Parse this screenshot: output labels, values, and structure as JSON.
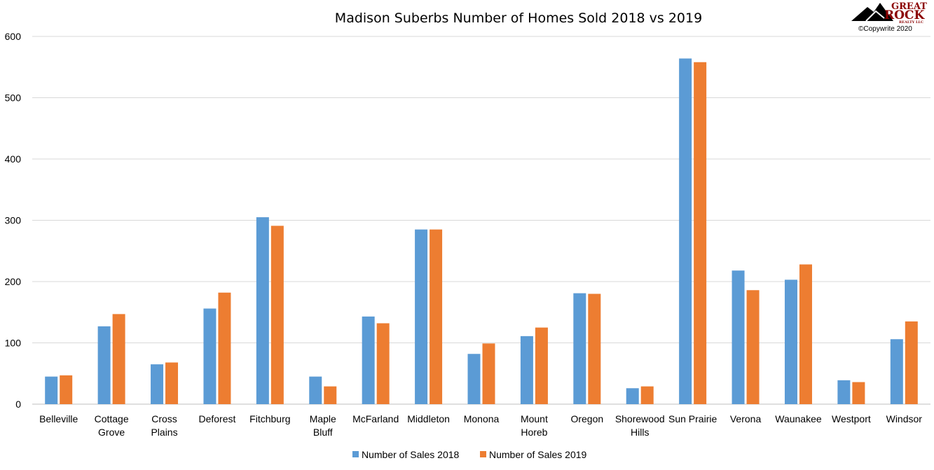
{
  "chart_data": {
    "type": "bar",
    "title": "Madison Suberbs Number of Homes Sold 2018 vs 2019",
    "xlabel": "",
    "ylabel": "",
    "ylim": [
      0,
      600
    ],
    "yticks": [
      0,
      100,
      200,
      300,
      400,
      500,
      600
    ],
    "grid": true,
    "legend_position": "bottom",
    "categories": [
      "Belleville",
      "Cottage Grove",
      "Cross Plains",
      "Deforest",
      "Fitchburg",
      "Maple Bluff",
      "McFarland",
      "Middleton",
      "Monona",
      "Mount Horeb",
      "Oregon",
      "Shorewood Hills",
      "Sun Prairie",
      "Verona",
      "Waunakee",
      "Westport",
      "Windsor"
    ],
    "category_lines": [
      [
        "Belleville"
      ],
      [
        "Cottage",
        "Grove"
      ],
      [
        "Cross",
        "Plains"
      ],
      [
        "Deforest"
      ],
      [
        "Fitchburg"
      ],
      [
        "Maple",
        "Bluff"
      ],
      [
        "McFarland"
      ],
      [
        "Middleton"
      ],
      [
        "Monona"
      ],
      [
        "Mount",
        "Horeb"
      ],
      [
        "Oregon"
      ],
      [
        "Shorewood",
        "Hills"
      ],
      [
        "Sun Prairie"
      ],
      [
        "Verona"
      ],
      [
        "Waunakee"
      ],
      [
        "Westport"
      ],
      [
        "Windsor"
      ]
    ],
    "series": [
      {
        "name": "Number of Sales 2018",
        "color": "#5b9bd5",
        "values": [
          45,
          127,
          65,
          156,
          305,
          45,
          143,
          285,
          82,
          111,
          181,
          26,
          564,
          218,
          203,
          39,
          106
        ]
      },
      {
        "name": "Number of Sales 2019",
        "color": "#ed7d31",
        "values": [
          47,
          147,
          68,
          182,
          291,
          29,
          132,
          285,
          99,
          125,
          180,
          29,
          558,
          186,
          228,
          36,
          135
        ]
      }
    ]
  },
  "logo": {
    "line1": "GREAT",
    "line2": "ROCK",
    "line3": "REALTY LLC",
    "copyright": "©Copywrite 2020"
  },
  "colors": {
    "grid": "#d9d9d9",
    "axis": "#bfbfbf",
    "logo": "#8b0000"
  },
  "icons": {
    "logo_mark": "mountain-icon"
  }
}
